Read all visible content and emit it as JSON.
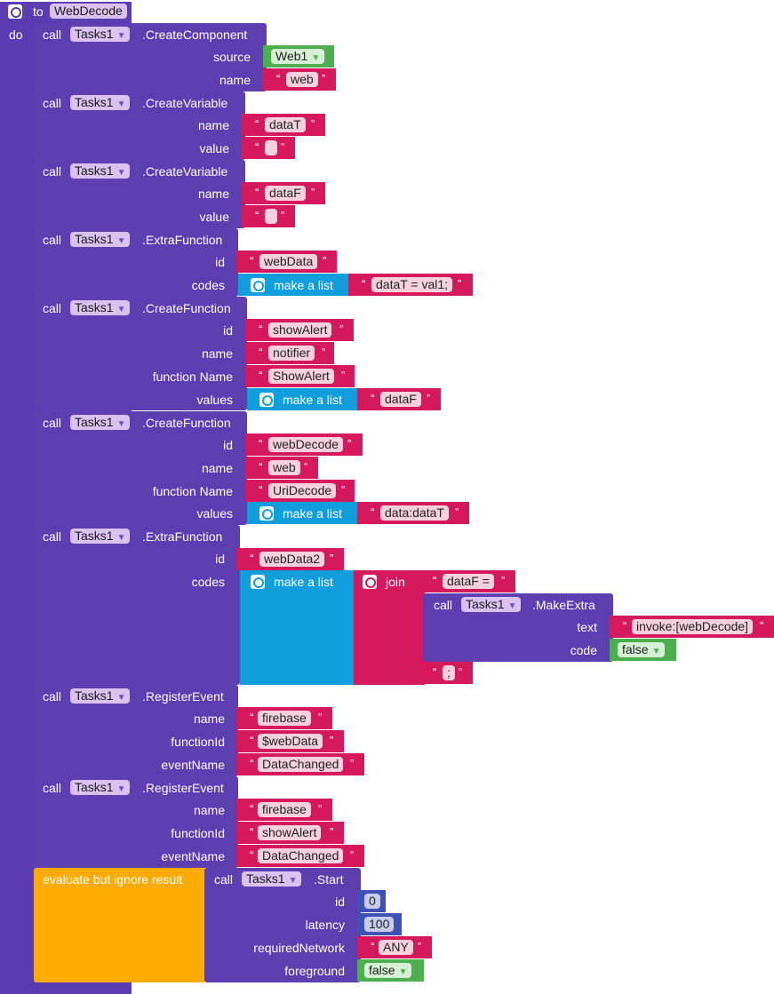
{
  "procedure": {
    "to_label": "to",
    "name": "WebDecode",
    "do_label": "do"
  },
  "call_label": "call",
  "component": "Tasks1",
  "blocks": [
    {
      "method": ".CreateComponent",
      "source_label": "source",
      "source_value": "Web1",
      "name_label": "name",
      "name_value": "web"
    },
    {
      "method": ".CreateVariable",
      "name_label": "name",
      "name_value": "dataT",
      "value_label": "value",
      "value_value": ""
    },
    {
      "method": ".CreateVariable",
      "name_label": "name",
      "name_value": "dataF",
      "value_label": "value",
      "value_value": ""
    },
    {
      "method": ".ExtraFunction",
      "id_label": "id",
      "id_value": "webData",
      "codes_label": "codes",
      "list_label": "make a list",
      "list_item": "dataT = val1;"
    },
    {
      "method": ".CreateFunction",
      "id_label": "id",
      "id_value": "showAlert",
      "name_label": "name",
      "name_value": "notifier",
      "fn_label": "function Name",
      "fn_value": "ShowAlert",
      "values_label": "values",
      "list_label": "make a list",
      "list_item": "dataF"
    },
    {
      "method": ".CreateFunction",
      "id_label": "id",
      "id_value": "webDecode",
      "name_label": "name",
      "name_value": "web",
      "fn_label": "function Name",
      "fn_value": "UriDecode",
      "values_label": "values",
      "list_label": "make a list",
      "list_item": "data:dataT"
    },
    {
      "method": ".ExtraFunction",
      "id_label": "id",
      "id_value": "webData2",
      "codes_label": "codes",
      "list_label": "make a list",
      "join_label": "join",
      "join_first": "dataF = ",
      "makeextra_method": ".MakeExtra",
      "text_label": "text",
      "text_value": "invoke:[webDecode]",
      "code_label": "code",
      "code_value": "false",
      "join_last": ";"
    },
    {
      "method": ".RegisterEvent",
      "name_label": "name",
      "name_value": "firebase",
      "fid_label": "functionId",
      "fid_value": "$webData",
      "event_label": "eventName",
      "event_value": "DataChanged"
    },
    {
      "method": ".RegisterEvent",
      "name_label": "name",
      "name_value": "firebase",
      "fid_label": "functionId",
      "fid_value": "showAlert",
      "event_label": "eventName",
      "event_value": "DataChanged"
    },
    {
      "evaluate_label": "evaluate but ignore result",
      "method": ".Start",
      "id_label": "id",
      "id_value": "0",
      "latency_label": "latency",
      "latency_value": "100",
      "network_label": "requiredNetwork",
      "network_value": "ANY",
      "fg_label": "foreground",
      "fg_value": "false"
    }
  ],
  "open_quote": "“",
  "close_quote": "”",
  "dropdown_arrow": "▼",
  "colors": {
    "procedure": "#5b3db3",
    "string": "#d6195d",
    "list": "#109fdc",
    "logic": "#4cae4f",
    "math": "#3f51b5",
    "control": "#ffab00"
  }
}
